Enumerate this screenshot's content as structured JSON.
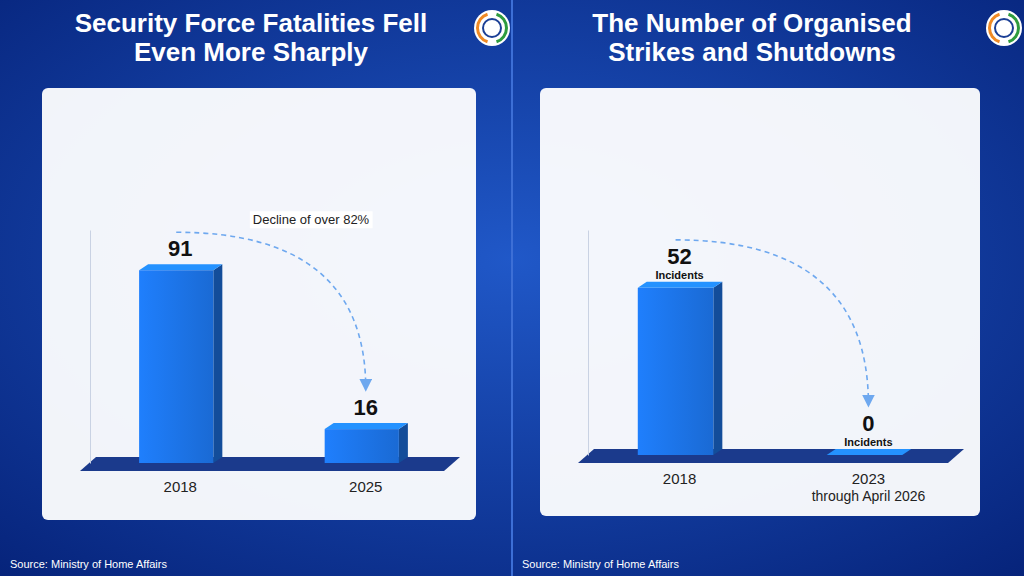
{
  "chart_data": [
    {
      "type": "bar",
      "title": "Security Force Fatalities Fell Even More Sharply",
      "categories": [
        "2018",
        "2025"
      ],
      "values": [
        91,
        16
      ],
      "color": "#1a6ad4",
      "ylim": [
        0,
        110
      ],
      "data_labels": true,
      "tick_labels": "x",
      "annotations": [
        "Decline of over 82%"
      ],
      "source": "Source: Ministry of Home Affairs"
    },
    {
      "type": "bar",
      "title": "The Number of Organised Strikes and Shutdowns",
      "categories": [
        "2018",
        "2023 through April 2026"
      ],
      "values": [
        52,
        0
      ],
      "value_labels": [
        "52 Incidents",
        "0 Incidents"
      ],
      "color": "#1a6ad4",
      "ylim": [
        0,
        70
      ],
      "data_labels": true,
      "tick_labels": "x",
      "source": "Source: Ministry of Home Affairs"
    }
  ]
}
